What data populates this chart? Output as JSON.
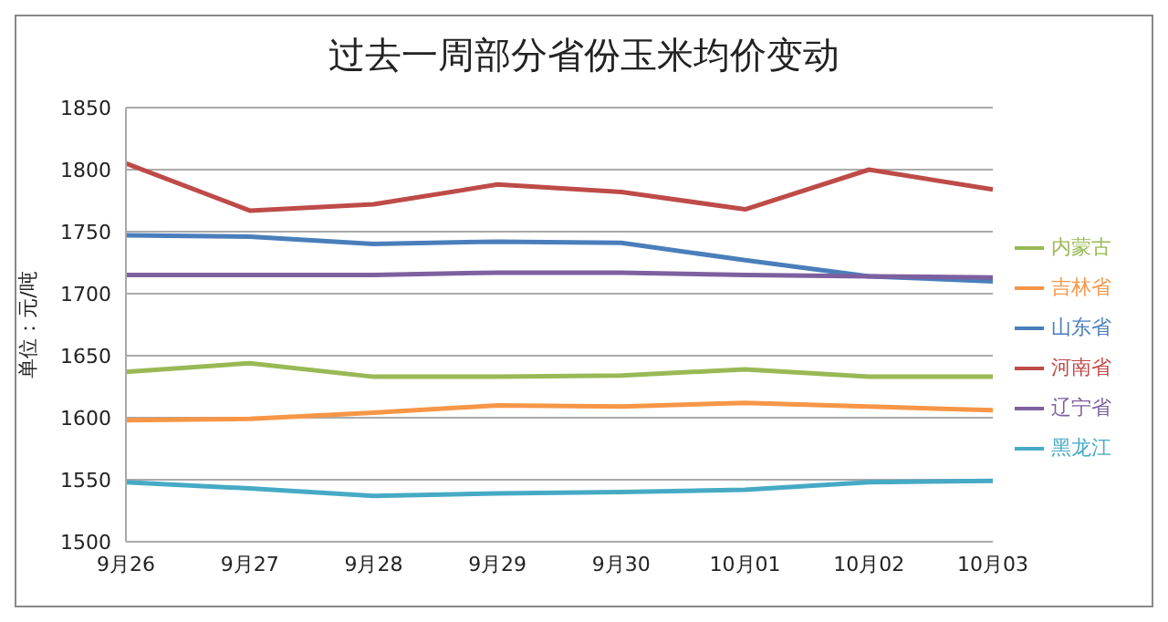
{
  "chart_data": {
    "type": "line",
    "title": "过去一周部分省份玉米均价变动",
    "ylabel": "单位：元/吨",
    "categories": [
      "9月26",
      "9月27",
      "9月28",
      "9月29",
      "9月30",
      "10月01",
      "10月02",
      "10月03"
    ],
    "series": [
      {
        "name": "山东省",
        "color": "#4a7ebb",
        "values": [
          1747,
          1746,
          1740,
          1742,
          1741,
          1727,
          1714,
          1710
        ]
      },
      {
        "name": "河南省",
        "color": "#be4b48",
        "values": [
          1805,
          1767,
          1772,
          1788,
          1782,
          1768,
          1800,
          1784
        ]
      },
      {
        "name": "内蒙古",
        "color": "#98b954",
        "values": [
          1637,
          1644,
          1633,
          1633,
          1634,
          1639,
          1633,
          1633
        ]
      },
      {
        "name": "辽宁省",
        "color": "#7d60a0",
        "values": [
          1715,
          1715,
          1715,
          1717,
          1717,
          1715,
          1714,
          1713
        ]
      },
      {
        "name": "黑龙江",
        "color": "#46aac5",
        "values": [
          1548,
          1543,
          1537,
          1539,
          1540,
          1542,
          1548,
          1549
        ]
      },
      {
        "name": "吉林省",
        "color": "#f79646",
        "values": [
          1598,
          1599,
          1604,
          1610,
          1609,
          1612,
          1609,
          1606
        ]
      }
    ],
    "ylim": [
      1500,
      1850
    ],
    "yticks": [
      1500,
      1550,
      1600,
      1650,
      1700,
      1750,
      1800,
      1850
    ],
    "grid": "y",
    "legend": "right",
    "marker": "none",
    "line_style": "solid"
  }
}
